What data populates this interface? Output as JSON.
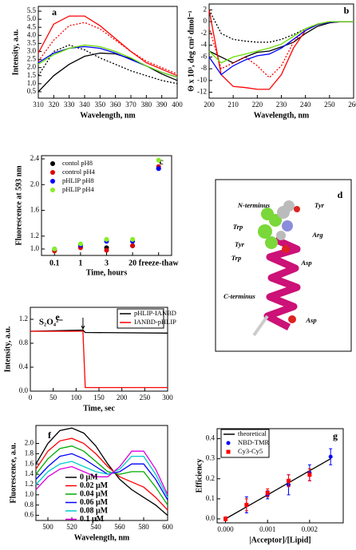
{
  "chart_data": [
    {
      "type": "line",
      "panel_label": "a",
      "xlabel": "Wavelength, nm",
      "ylabel": "Intensity, a.u.",
      "x": [
        310,
        320,
        330,
        340,
        350,
        360,
        370,
        380,
        390,
        400
      ],
      "xlim": [
        310,
        400
      ],
      "xticks": [
        310,
        320,
        330,
        340,
        350,
        360,
        370,
        380,
        390,
        400
      ],
      "ylim": [
        0.1,
        5.8
      ],
      "yticks": [
        {
          "value": 0.5,
          "label": "0.5"
        },
        {
          "value": 1,
          "label": "1.0"
        },
        {
          "value": 1.5,
          "label": "1.5"
        },
        {
          "value": 2,
          "label": "2.0"
        },
        {
          "value": 2.5,
          "label": "2.5"
        },
        {
          "value": 3,
          "label": "3.0"
        },
        {
          "value": 3.5,
          "label": "3.5"
        },
        {
          "value": 4,
          "label": "4.0"
        },
        {
          "value": 4.5,
          "label": "4.5"
        },
        {
          "value": 5,
          "label": "5.0"
        },
        {
          "value": 5.5,
          "label": "5.5"
        }
      ],
      "series": [
        {
          "color": "#000000",
          "linestyle": "solid",
          "values": [
            0.5,
            1.5,
            2.2,
            2.7,
            2.9,
            2.85,
            2.55,
            2.1,
            1.6,
            1.2
          ]
        },
        {
          "color": "#000000",
          "linestyle": "dotted",
          "values": [
            1.5,
            3.0,
            3.4,
            3.1,
            2.6,
            2.2,
            1.8,
            1.5,
            1.2,
            1.0
          ]
        },
        {
          "color": "#ff0000",
          "linestyle": "solid",
          "values": [
            2.9,
            4.7,
            5.2,
            5.2,
            4.6,
            3.8,
            3.0,
            2.3,
            1.9,
            1.5
          ]
        },
        {
          "color": "#ff0000",
          "linestyle": "dotted",
          "values": [
            2.4,
            3.7,
            4.6,
            4.8,
            4.4,
            3.7,
            3.0,
            2.4,
            2.0,
            1.6
          ]
        },
        {
          "color": "#0000ff",
          "linestyle": "solid",
          "values": [
            2.3,
            2.9,
            3.2,
            3.3,
            3.2,
            2.9,
            2.5,
            2.1,
            1.7,
            1.4
          ]
        },
        {
          "color": "#66dd00",
          "linestyle": "solid",
          "values": [
            2.2,
            2.8,
            3.2,
            3.4,
            3.3,
            3.0,
            2.6,
            2.1,
            1.7,
            1.4
          ]
        }
      ]
    },
    {
      "type": "line",
      "panel_label": "b",
      "xlabel": "Wavelength, nm",
      "ylabel": "Θ x 10³, deg cm² dmol⁻¹",
      "x": [
        200,
        205,
        210,
        215,
        220,
        225,
        230,
        235,
        240,
        245,
        250,
        255,
        260
      ],
      "xlim": [
        200,
        260
      ],
      "xticks": [
        200,
        210,
        220,
        230,
        240,
        250,
        260
      ],
      "ylim": [
        -13,
        3
      ],
      "yticks": [
        -12,
        -10,
        -8,
        -6,
        -4,
        -2,
        0,
        2
      ],
      "series": [
        {
          "color": "#000000",
          "linestyle": "solid",
          "values": [
            -5,
            -6,
            -7,
            -6,
            -5.2,
            -5,
            -4.3,
            -3.5,
            -2,
            -0.8,
            -0.2,
            0,
            0
          ]
        },
        {
          "color": "#000000",
          "linestyle": "dotted",
          "values": [
            2,
            -2,
            -3,
            -3.3,
            -3.5,
            -3.5,
            -3,
            -2.2,
            -1.2,
            -0.5,
            -0.1,
            0,
            0
          ]
        },
        {
          "color": "#ff0000",
          "linestyle": "solid",
          "values": [
            2,
            -9,
            -11,
            -11.2,
            -11.5,
            -11.5,
            -9,
            -4.5,
            -1.5,
            -0.5,
            -0.1,
            0,
            0
          ]
        },
        {
          "color": "#ff0000",
          "linestyle": "dotted",
          "values": [
            -1,
            -8,
            -7,
            -6,
            -7.5,
            -9.5,
            -7.5,
            -3.5,
            -1.2,
            -0.4,
            0,
            0,
            0
          ]
        },
        {
          "color": "#0000ff",
          "linestyle": "solid",
          "values": [
            -6,
            -9,
            -7.5,
            -6.5,
            -5.8,
            -5.5,
            -4.5,
            -3,
            -1.5,
            -0.5,
            -0.1,
            0,
            0
          ]
        },
        {
          "color": "#66dd00",
          "linestyle": "solid",
          "values": [
            -5,
            -7,
            -6,
            -5.5,
            -5,
            -4.5,
            -3.8,
            -2.5,
            -1.2,
            -0.4,
            0,
            0,
            0
          ]
        }
      ]
    },
    {
      "type": "scatter",
      "panel_label": "c",
      "xlabel": "Time, hours",
      "ylabel": "Fluorescence at 593 nm",
      "categories": [
        "0.1",
        "1",
        "3",
        "20",
        "freeze-thaw"
      ],
      "ylim": [
        0.9,
        2.45
      ],
      "yticks": [
        {
          "value": 1,
          "label": "1.0"
        },
        1.2,
        1.6,
        {
          "value": 2,
          "label": "2.0"
        },
        2.4
      ],
      "legend": "upper left",
      "series": [
        {
          "name": "contol pH8",
          "color": "#000000",
          "marker": "circle",
          "values": [
            0.98,
            1.03,
            1.02,
            1.05,
            2.25
          ]
        },
        {
          "name": "control pH4",
          "color": "#dd0000",
          "marker": "circle",
          "values": [
            0.97,
            1.02,
            0.98,
            1.05,
            2.28
          ]
        },
        {
          "name": "pHLIP pH8",
          "color": "#0000ff",
          "marker": "circle",
          "values": [
            1.0,
            1.06,
            1.12,
            1.12,
            2.25
          ]
        },
        {
          "name": "pHLIP pH4",
          "color": "#88ee22",
          "marker": "circle",
          "values": [
            1.0,
            1.08,
            1.15,
            1.15,
            2.38
          ]
        }
      ]
    },
    {
      "type": "line",
      "panel_label": "e",
      "xlabel": "Time, sec",
      "ylabel": "Intensity, a.u.",
      "annotation": "S₂O₄²⁻",
      "xlim": [
        0,
        300
      ],
      "xticks": [
        0,
        50,
        100,
        150,
        200,
        250,
        300
      ],
      "ylim": [
        0,
        1.4
      ],
      "yticks": [
        {
          "value": 0,
          "label": "0.0"
        },
        0.4,
        0.8,
        1.2
      ],
      "legend": "upper right",
      "series": [
        {
          "name": "pHLIP-IANBD",
          "color": "#000000",
          "linestyle": "solid",
          "x": [
            0,
            115,
            120,
            300
          ],
          "values": [
            1.0,
            1.02,
            0.98,
            0.97
          ]
        },
        {
          "name": "IANBD-pHLIP",
          "color": "#ff0000",
          "linestyle": "solid",
          "x": [
            0,
            115,
            120,
            300
          ],
          "values": [
            1.0,
            1.0,
            0.06,
            0.06
          ]
        }
      ]
    },
    {
      "type": "line",
      "panel_label": "f",
      "xlabel": "Wavelength, nm",
      "ylabel": "Fluorescence, a.u.",
      "x": [
        490,
        500,
        510,
        520,
        530,
        540,
        550,
        560,
        570,
        580,
        590,
        600
      ],
      "xlim": [
        490,
        600
      ],
      "xticks": [
        500,
        520,
        540,
        560,
        580,
        600
      ],
      "ylim": [
        0.5,
        2.35
      ],
      "yticks": [
        0.6,
        0.8,
        {
          "value": 1,
          "label": "1.0"
        },
        1.2,
        1.4,
        1.6,
        1.8,
        {
          "value": 2,
          "label": "2.0"
        }
      ],
      "legend": "lower left",
      "series": [
        {
          "name": "0 μM",
          "color": "#000000",
          "linestyle": "solid",
          "values": [
            1.6,
            2.0,
            2.25,
            2.3,
            2.2,
            1.95,
            1.6,
            1.3,
            1.1,
            0.95,
            0.8,
            0.6
          ]
        },
        {
          "name": "0.02 μM",
          "color": "#ff0000",
          "linestyle": "solid",
          "values": [
            1.5,
            1.85,
            2.05,
            2.1,
            2.0,
            1.8,
            1.55,
            1.35,
            1.25,
            1.15,
            0.95,
            0.7
          ]
        },
        {
          "name": "0.04 μM",
          "color": "#00aa00",
          "linestyle": "solid",
          "values": [
            1.4,
            1.7,
            1.9,
            1.95,
            1.85,
            1.65,
            1.45,
            1.4,
            1.45,
            1.45,
            1.15,
            0.8
          ]
        },
        {
          "name": "0.06 μM",
          "color": "#0000ff",
          "linestyle": "solid",
          "values": [
            1.3,
            1.55,
            1.75,
            1.8,
            1.7,
            1.55,
            1.4,
            1.45,
            1.6,
            1.6,
            1.3,
            0.9
          ]
        },
        {
          "name": "0.08 μM",
          "color": "#00cccc",
          "linestyle": "solid",
          "values": [
            1.2,
            1.45,
            1.6,
            1.65,
            1.55,
            1.45,
            1.4,
            1.5,
            1.75,
            1.75,
            1.4,
            0.95
          ]
        },
        {
          "name": "0.1 μM",
          "color": "#dd00dd",
          "linestyle": "solid",
          "values": [
            1.1,
            1.35,
            1.5,
            1.55,
            1.45,
            1.35,
            1.35,
            1.55,
            1.85,
            1.85,
            1.5,
            1.0
          ]
        }
      ]
    },
    {
      "type": "scatter",
      "panel_label": "g",
      "xlabel": "|Acceptor]/[Lipid]",
      "ylabel": "Efficiency",
      "xlim": [
        -0.0002,
        0.0028
      ],
      "xticks": [
        {
          "value": 0,
          "label": "0.000"
        },
        {
          "value": 0.001,
          "label": "0.001"
        },
        {
          "value": 0.002,
          "label": "0.002"
        }
      ],
      "ylim": [
        -0.02,
        0.45
      ],
      "yticks": [
        {
          "value": 0,
          "label": "0.0"
        },
        0.1,
        0.2,
        0.3,
        0.4
      ],
      "legend": "upper left",
      "series": [
        {
          "name": "theoretical",
          "color": "#000000",
          "marker": "line",
          "x": [
            0,
            0.0005,
            0.001,
            0.0015,
            0.002,
            0.0025
          ],
          "values": [
            0,
            0.06,
            0.12,
            0.18,
            0.24,
            0.3
          ]
        },
        {
          "name": "NBD-TMR",
          "color": "#0000ff",
          "marker": "circle",
          "x": [
            0,
            0.0005,
            0.001,
            0.0015,
            0.002,
            0.0025
          ],
          "values": [
            0.0,
            0.07,
            0.12,
            0.17,
            0.23,
            0.31
          ],
          "errors": [
            0.01,
            0.04,
            0.02,
            0.05,
            0.04,
            0.04
          ]
        },
        {
          "name": "Cy3-Cy5",
          "color": "#ff0000",
          "marker": "square",
          "x": [
            0,
            0.0005,
            0.001,
            0.0015,
            0.002
          ],
          "values": [
            0.0,
            0.07,
            0.13,
            0.19,
            0.22
          ],
          "errors": [
            0.01,
            0.03,
            0.02,
            0.03,
            0.03
          ]
        }
      ]
    }
  ],
  "panel_d": {
    "panel_label": "d",
    "annotations": [
      "N-terminus",
      "Tyr",
      "Trp",
      "Arg",
      "Tyr",
      "Trp",
      "Asp",
      "C-terminus",
      "Asp"
    ]
  }
}
